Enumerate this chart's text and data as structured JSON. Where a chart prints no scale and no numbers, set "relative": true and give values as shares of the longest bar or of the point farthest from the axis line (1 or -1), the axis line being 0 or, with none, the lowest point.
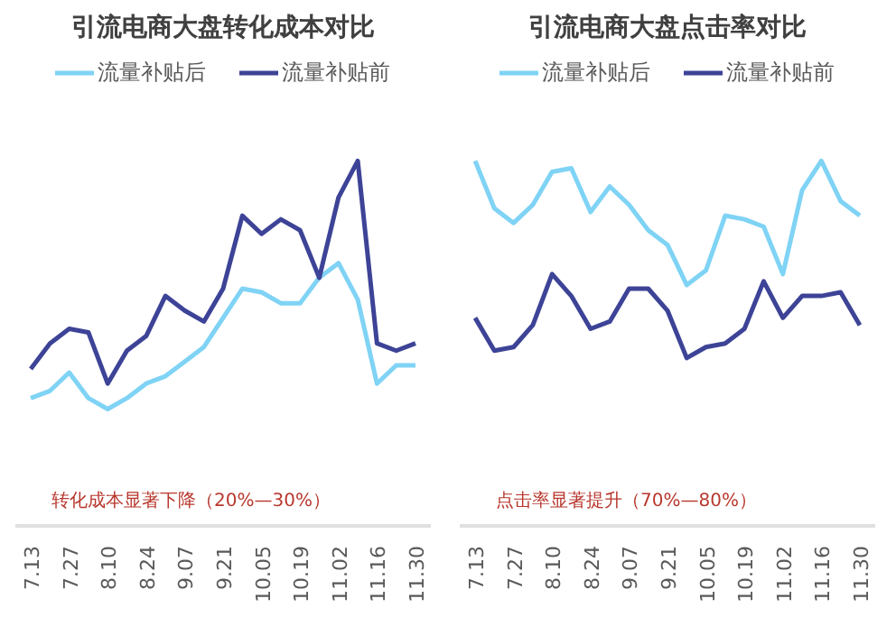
{
  "chart_data": [
    {
      "type": "line",
      "title": "引流电商大盘转化成本对比",
      "relative": true,
      "legend": "top",
      "grid": false,
      "marker": "none",
      "line_style": "solid",
      "categories": [
        "7.13",
        null,
        "7.27",
        null,
        "8.10",
        null,
        "8.24",
        null,
        "9.07",
        null,
        "9.21",
        null,
        "10.05",
        null,
        "10.19",
        null,
        "11.02",
        null,
        "11.16",
        null,
        "11.30"
      ],
      "series": [
        {
          "name": "流量补贴后",
          "color": "#7fd3f5",
          "values": [
            0.35,
            0.37,
            0.42,
            0.35,
            0.32,
            0.35,
            0.39,
            0.41,
            0.45,
            0.49,
            0.57,
            0.65,
            0.64,
            0.61,
            0.61,
            0.68,
            0.72,
            0.62,
            0.39,
            0.44,
            0.44
          ]
        },
        {
          "name": "流量补贴前",
          "color": "#3d4396",
          "values": [
            0.43,
            0.5,
            0.54,
            0.53,
            0.39,
            0.48,
            0.52,
            0.63,
            0.59,
            0.56,
            0.65,
            0.85,
            0.8,
            0.84,
            0.81,
            0.68,
            0.9,
            1.0,
            0.5,
            0.48,
            0.5
          ]
        }
      ],
      "annotations": [
        "转化成本显著下降（20%—30%）"
      ]
    },
    {
      "type": "line",
      "title": "引流电商大盘点击率对比",
      "relative": true,
      "legend": "top",
      "grid": false,
      "marker": "none",
      "line_style": "solid",
      "categories": [
        "7.13",
        null,
        "7.27",
        null,
        "8.10",
        null,
        "8.24",
        null,
        "9.07",
        null,
        "9.21",
        null,
        "10.05",
        null,
        "10.19",
        null,
        "11.02",
        null,
        "11.16",
        null,
        "11.30"
      ],
      "series": [
        {
          "name": "流量补贴后",
          "color": "#7fd3f5",
          "values": [
            1.0,
            0.87,
            0.83,
            0.88,
            0.97,
            0.98,
            0.86,
            0.93,
            0.88,
            0.81,
            0.77,
            0.66,
            0.7,
            0.85,
            0.84,
            0.82,
            0.69,
            0.92,
            1.0,
            0.89,
            0.85
          ]
        },
        {
          "name": "流量补贴前",
          "color": "#3d4396",
          "values": [
            0.57,
            0.48,
            0.49,
            0.55,
            0.69,
            0.63,
            0.54,
            0.56,
            0.65,
            0.65,
            0.59,
            0.46,
            0.49,
            0.5,
            0.54,
            0.67,
            0.57,
            0.63,
            0.63,
            0.64,
            0.55
          ]
        }
      ],
      "annotations": [
        "点击率显著提升（70%—80%）"
      ]
    }
  ]
}
